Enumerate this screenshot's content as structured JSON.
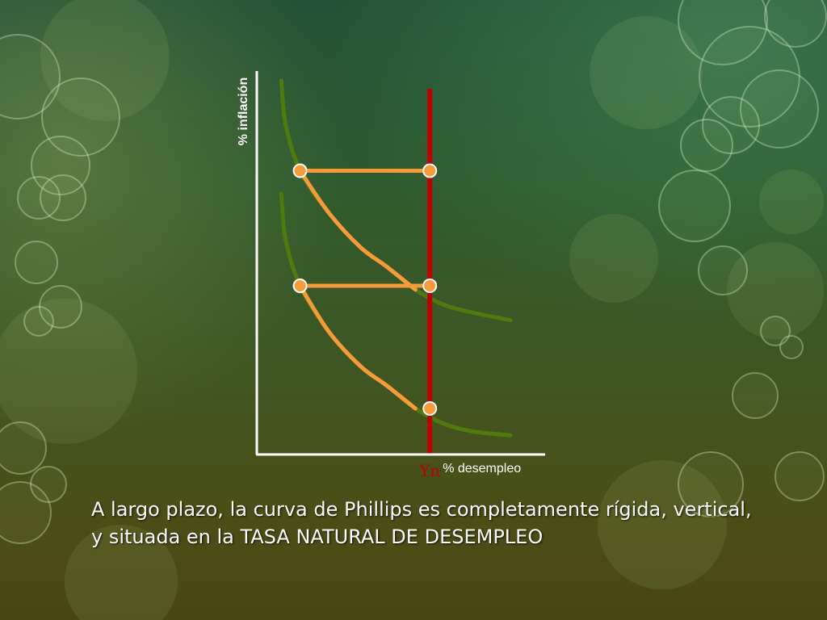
{
  "chart_data": {
    "type": "line",
    "title": "",
    "xlabel": "% desempleo",
    "ylabel": "% inflación",
    "xlim": [
      0,
      10
    ],
    "ylim": [
      0,
      10
    ],
    "grid": false,
    "series": [
      {
        "points": [
          [
            0.85,
            9.75
          ],
          [
            1.0,
            8.6
          ],
          [
            1.5,
            7.4
          ],
          [
            2.5,
            6.3
          ],
          [
            3.6,
            5.4
          ],
          [
            4.5,
            4.9
          ],
          [
            5.5,
            4.3
          ],
          [
            6.5,
            3.9
          ],
          [
            7.5,
            3.7
          ],
          [
            8.8,
            3.5
          ]
        ],
        "highlight_range": [
          1.5,
          6.0
        ]
      },
      {
        "points": [
          [
            0.85,
            6.8
          ],
          [
            1.0,
            5.6
          ],
          [
            1.5,
            4.4
          ],
          [
            2.5,
            3.2
          ],
          [
            3.6,
            2.3
          ],
          [
            4.5,
            1.8
          ],
          [
            5.5,
            1.2
          ],
          [
            6.5,
            0.8
          ],
          [
            7.5,
            0.6
          ],
          [
            8.8,
            0.5
          ]
        ],
        "highlight_range": [
          1.5,
          6.0
        ]
      }
    ],
    "vertical_line": {
      "x": 6.0,
      "label": "Yn"
    },
    "horizontal_segments": [
      {
        "y": 7.4,
        "x_from": 1.5,
        "x_to": 6.0
      },
      {
        "y": 4.4,
        "x_from": 1.5,
        "x_to": 6.0
      }
    ],
    "points": [
      {
        "x": 1.5,
        "y": 7.4
      },
      {
        "x": 6.0,
        "y": 7.4
      },
      {
        "x": 1.5,
        "y": 4.4
      },
      {
        "x": 6.0,
        "y": 4.4
      },
      {
        "x": 6.0,
        "y": 1.2
      }
    ],
    "colors": {
      "axis": "#ffffff",
      "curve": "#4f7a10",
      "highlight": "#f79a3a",
      "vertical": "#c00000",
      "point_fill": "#f79a3a",
      "point_stroke": "#ffffff",
      "yn_label": "#c00000"
    }
  },
  "caption": {
    "line1": "A largo plazo, la curva de Phillips es completamente rígida, vertical,",
    "line2": "y situada en la TASA NATURAL DE DESEMPLEO"
  }
}
